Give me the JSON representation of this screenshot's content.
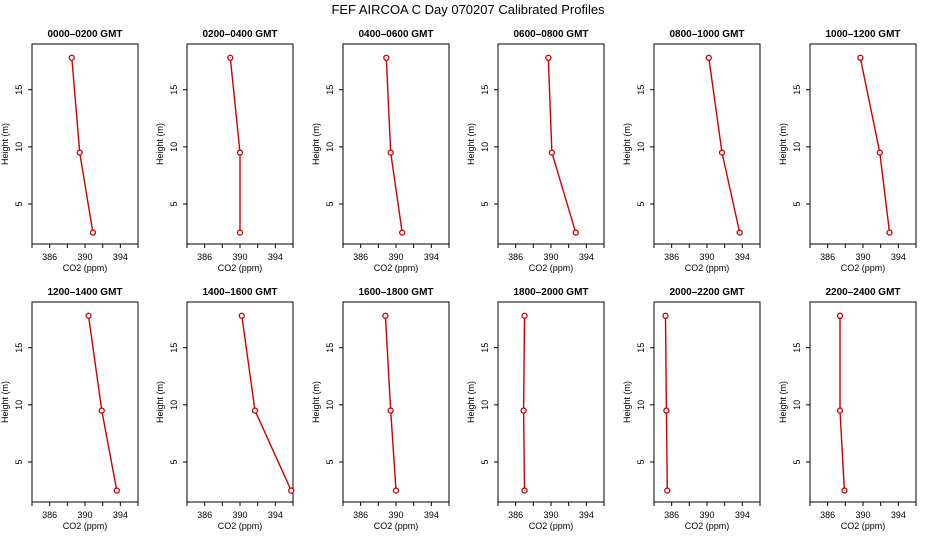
{
  "figure_title": "FEF AIRCOA C  Day 070207  Calibrated Profiles",
  "line_color": "#cc0000",
  "chart_data": [
    {
      "type": "line",
      "title": "0000–0200 GMT",
      "xlabel": "CO2 (ppm)",
      "ylabel": "Height (m)",
      "xlim": [
        384,
        396
      ],
      "ylim": [
        1.5,
        19
      ],
      "xticks": [
        "386",
        "390",
        "394"
      ],
      "yticks": [
        "5",
        "10",
        "15"
      ],
      "x": [
        388.5,
        389.4,
        390.9
      ],
      "y": [
        17.8,
        9.5,
        2.5
      ]
    },
    {
      "type": "line",
      "title": "0200–0400 GMT",
      "xlabel": "CO2 (ppm)",
      "ylabel": "Height (m)",
      "xlim": [
        384,
        396
      ],
      "ylim": [
        1.5,
        19
      ],
      "xticks": [
        "386",
        "390",
        "394"
      ],
      "yticks": [
        "5",
        "10",
        "15"
      ],
      "x": [
        388.9,
        390.0,
        390.0
      ],
      "y": [
        17.8,
        9.5,
        2.5
      ]
    },
    {
      "type": "line",
      "title": "0400–0600 GMT",
      "xlabel": "CO2 (ppm)",
      "ylabel": "Height (m)",
      "xlim": [
        384,
        396
      ],
      "ylim": [
        1.5,
        19
      ],
      "xticks": [
        "386",
        "390",
        "394"
      ],
      "yticks": [
        "5",
        "10",
        "15"
      ],
      "x": [
        388.9,
        389.4,
        390.7
      ],
      "y": [
        17.8,
        9.5,
        2.5
      ]
    },
    {
      "type": "line",
      "title": "0600–0800 GMT",
      "xlabel": "CO2 (ppm)",
      "ylabel": "Height (m)",
      "xlim": [
        384,
        396
      ],
      "ylim": [
        1.5,
        19
      ],
      "xticks": [
        "386",
        "390",
        "394"
      ],
      "yticks": [
        "5",
        "10",
        "15"
      ],
      "x": [
        389.7,
        390.1,
        392.8
      ],
      "y": [
        17.8,
        9.5,
        2.5
      ]
    },
    {
      "type": "line",
      "title": "0800–1000 GMT",
      "xlabel": "CO2 (ppm)",
      "ylabel": "Height (m)",
      "xlim": [
        384,
        396
      ],
      "ylim": [
        1.5,
        19
      ],
      "xticks": [
        "386",
        "390",
        "394"
      ],
      "yticks": [
        "5",
        "10",
        "15"
      ],
      "x": [
        390.2,
        391.7,
        393.7
      ],
      "y": [
        17.8,
        9.5,
        2.5
      ]
    },
    {
      "type": "line",
      "title": "1000–1200 GMT",
      "xlabel": "CO2 (ppm)",
      "ylabel": "Height (m)",
      "xlim": [
        384,
        396
      ],
      "ylim": [
        1.5,
        19
      ],
      "xticks": [
        "386",
        "390",
        "394"
      ],
      "yticks": [
        "5",
        "10",
        "15"
      ],
      "x": [
        389.7,
        391.9,
        393.0
      ],
      "y": [
        17.8,
        9.5,
        2.5
      ]
    },
    {
      "type": "line",
      "title": "1200–1400 GMT",
      "xlabel": "CO2 (ppm)",
      "ylabel": "Height (m)",
      "xlim": [
        384,
        396
      ],
      "ylim": [
        1.5,
        19
      ],
      "xticks": [
        "386",
        "390",
        "394"
      ],
      "yticks": [
        "5",
        "10",
        "15"
      ],
      "x": [
        390.4,
        391.9,
        393.6
      ],
      "y": [
        17.8,
        9.5,
        2.5
      ]
    },
    {
      "type": "line",
      "title": "1400–1600 GMT",
      "xlabel": "CO2 (ppm)",
      "ylabel": "Height (m)",
      "xlim": [
        384,
        396
      ],
      "ylim": [
        1.5,
        19
      ],
      "xticks": [
        "386",
        "390",
        "394"
      ],
      "yticks": [
        "5",
        "10",
        "15"
      ],
      "x": [
        390.2,
        391.7,
        395.8
      ],
      "y": [
        17.8,
        9.5,
        2.5
      ]
    },
    {
      "type": "line",
      "title": "1600–1800 GMT",
      "xlabel": "CO2 (ppm)",
      "ylabel": "Height (m)",
      "xlim": [
        384,
        396
      ],
      "ylim": [
        1.5,
        19
      ],
      "xticks": [
        "386",
        "390",
        "394"
      ],
      "yticks": [
        "5",
        "10",
        "15"
      ],
      "x": [
        388.8,
        389.4,
        390.0
      ],
      "y": [
        17.8,
        9.5,
        2.5
      ]
    },
    {
      "type": "line",
      "title": "1800–2000 GMT",
      "xlabel": "CO2 (ppm)",
      "ylabel": "Height (m)",
      "xlim": [
        384,
        396
      ],
      "ylim": [
        1.5,
        19
      ],
      "xticks": [
        "386",
        "390",
        "394"
      ],
      "yticks": [
        "5",
        "10",
        "15"
      ],
      "x": [
        387.0,
        386.9,
        387.0
      ],
      "y": [
        17.8,
        9.5,
        2.5
      ]
    },
    {
      "type": "line",
      "title": "2000–2200 GMT",
      "xlabel": "CO2 (ppm)",
      "ylabel": "Height (m)",
      "xlim": [
        384,
        396
      ],
      "ylim": [
        1.5,
        19
      ],
      "xticks": [
        "386",
        "390",
        "394"
      ],
      "yticks": [
        "5",
        "10",
        "15"
      ],
      "x": [
        385.3,
        385.4,
        385.5
      ],
      "y": [
        17.8,
        9.5,
        2.5
      ]
    },
    {
      "type": "line",
      "title": "2200–2400 GMT",
      "xlabel": "CO2 (ppm)",
      "ylabel": "Height (m)",
      "xlim": [
        384,
        396
      ],
      "ylim": [
        1.5,
        19
      ],
      "xticks": [
        "386",
        "390",
        "394"
      ],
      "yticks": [
        "5",
        "10",
        "15"
      ],
      "x": [
        387.4,
        387.4,
        387.9
      ],
      "y": [
        17.8,
        9.5,
        2.5
      ]
    }
  ]
}
